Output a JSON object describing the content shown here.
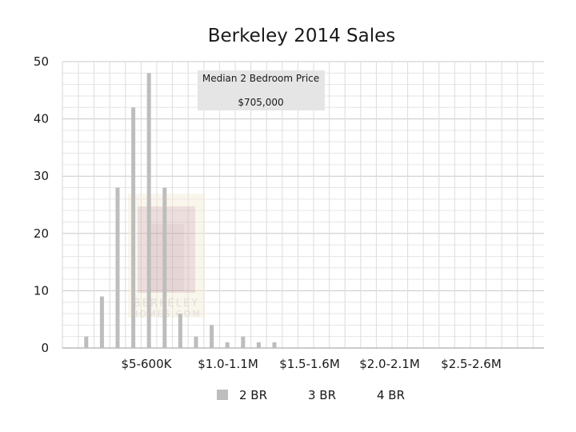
{
  "chart_data": {
    "type": "bar",
    "title": "Berkeley 2014 Sales",
    "xlabel": "",
    "ylabel": "",
    "ylim": [
      0,
      50
    ],
    "yticks": [
      0,
      10,
      20,
      30,
      40,
      50
    ],
    "grid": true,
    "x_tick_labels": [
      "$5-600K",
      "$1.0-1.1M",
      "$1.5-1.6M",
      "$2.0-2.1M",
      "$2.5-2.6M"
    ],
    "legend_position": "bottom",
    "series": [
      {
        "name": "2 BR",
        "color": "#bdbdbd",
        "values": [
          2,
          9,
          28,
          42,
          48,
          28,
          6,
          2,
          4,
          1,
          2,
          1,
          1,
          0,
          0,
          0,
          0,
          0,
          0,
          0,
          0,
          0,
          0,
          0,
          0,
          0,
          0,
          0,
          0,
          0
        ]
      },
      {
        "name": "3 BR",
        "color": "#bdbdbd",
        "values": []
      },
      {
        "name": "4 BR",
        "color": "#bdbdbd",
        "values": []
      }
    ],
    "annotation": {
      "line1": "Median 2 Bedroom Price",
      "line2": "$705,000"
    }
  },
  "watermark": {
    "text_line1": "BERKELEY",
    "text_line2": "HOMES.COM"
  }
}
